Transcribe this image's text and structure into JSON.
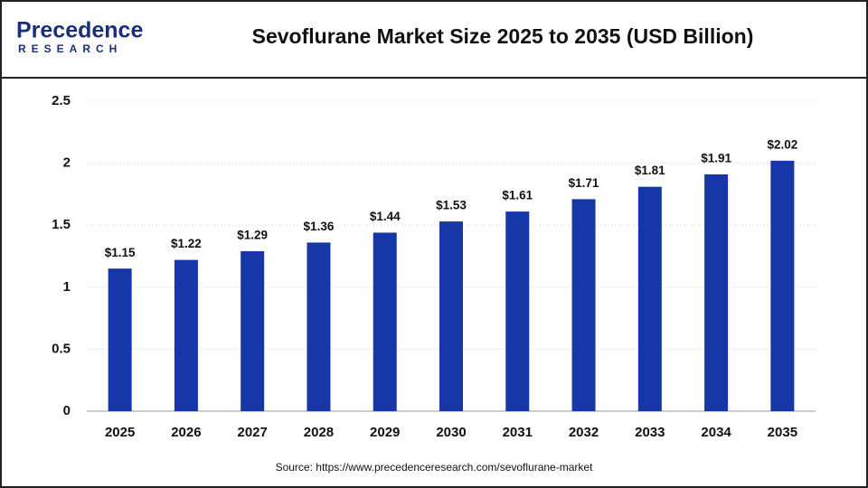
{
  "logo": {
    "name": "Precedence",
    "sub": "RESEARCH"
  },
  "chart_data": {
    "type": "bar",
    "title": "Sevoflurane Market Size 2025 to 2035 (USD Billion)",
    "categories": [
      "2025",
      "2026",
      "2027",
      "2028",
      "2029",
      "2030",
      "2031",
      "2032",
      "2033",
      "2034",
      "2035"
    ],
    "values": [
      1.15,
      1.22,
      1.29,
      1.36,
      1.44,
      1.53,
      1.61,
      1.71,
      1.81,
      1.91,
      2.02
    ],
    "value_labels": [
      "$1.15",
      "$1.22",
      "$1.29",
      "$1.36",
      "$1.44",
      "$1.53",
      "$1.61",
      "$1.71",
      "$1.81",
      "$1.91",
      "$2.02"
    ],
    "color": "#1737a8",
    "ylim": [
      0,
      2.5
    ],
    "yticks": [
      0,
      0.5,
      1,
      1.5,
      2,
      2.5
    ],
    "grid": true,
    "source": "Source: https://www.precedenceresearch.com/sevoflurane-market"
  }
}
